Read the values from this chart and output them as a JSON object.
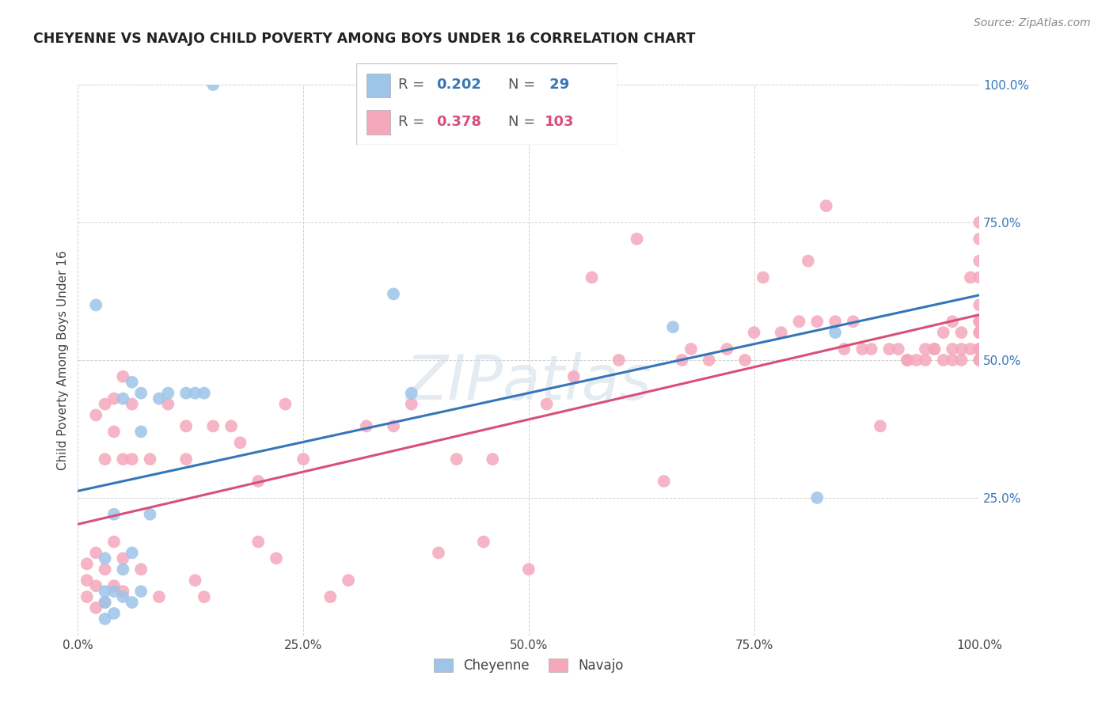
{
  "title": "CHEYENNE VS NAVAJO CHILD POVERTY AMONG BOYS UNDER 16 CORRELATION CHART",
  "source": "Source: ZipAtlas.com",
  "ylabel": "Child Poverty Among Boys Under 16",
  "cheyenne_R": 0.202,
  "cheyenne_N": 29,
  "navajo_R": 0.378,
  "navajo_N": 103,
  "cheyenne_color": "#9ec4e8",
  "navajo_color": "#f5a8bc",
  "cheyenne_line_color": "#3676b8",
  "navajo_line_color": "#d94f7a",
  "background_color": "#ffffff",
  "xlim": [
    0,
    1
  ],
  "ylim": [
    0,
    1
  ],
  "xticks": [
    0.0,
    0.25,
    0.5,
    0.75,
    1.0
  ],
  "yticks": [
    0.25,
    0.5,
    0.75,
    1.0
  ],
  "xticklabels": [
    "0.0%",
    "25.0%",
    "50.0%",
    "75.0%",
    "100.0%"
  ],
  "yticklabels": [
    "25.0%",
    "50.0%",
    "75.0%",
    "100.0%"
  ],
  "cheyenne_x": [
    0.02,
    0.03,
    0.03,
    0.03,
    0.03,
    0.04,
    0.04,
    0.04,
    0.05,
    0.05,
    0.05,
    0.06,
    0.06,
    0.06,
    0.07,
    0.07,
    0.07,
    0.08,
    0.09,
    0.1,
    0.12,
    0.13,
    0.14,
    0.15,
    0.35,
    0.37,
    0.66,
    0.82,
    0.84
  ],
  "cheyenne_y": [
    0.6,
    0.03,
    0.06,
    0.08,
    0.14,
    0.04,
    0.08,
    0.22,
    0.07,
    0.12,
    0.43,
    0.06,
    0.15,
    0.46,
    0.08,
    0.37,
    0.44,
    0.22,
    0.43,
    0.44,
    0.44,
    0.44,
    0.44,
    1.0,
    0.62,
    0.44,
    0.56,
    0.25,
    0.55
  ],
  "navajo_x": [
    0.01,
    0.01,
    0.01,
    0.02,
    0.02,
    0.02,
    0.02,
    0.03,
    0.03,
    0.03,
    0.03,
    0.04,
    0.04,
    0.04,
    0.04,
    0.05,
    0.05,
    0.05,
    0.05,
    0.06,
    0.06,
    0.07,
    0.08,
    0.09,
    0.1,
    0.12,
    0.12,
    0.13,
    0.14,
    0.15,
    0.17,
    0.18,
    0.2,
    0.2,
    0.22,
    0.23,
    0.25,
    0.28,
    0.3,
    0.32,
    0.35,
    0.37,
    0.4,
    0.42,
    0.45,
    0.46,
    0.5,
    0.52,
    0.55,
    0.57,
    0.6,
    0.62,
    0.65,
    0.67,
    0.68,
    0.7,
    0.72,
    0.74,
    0.75,
    0.76,
    0.78,
    0.8,
    0.81,
    0.82,
    0.83,
    0.84,
    0.85,
    0.86,
    0.87,
    0.88,
    0.89,
    0.9,
    0.91,
    0.92,
    0.92,
    0.93,
    0.94,
    0.94,
    0.95,
    0.95,
    0.96,
    0.96,
    0.97,
    0.97,
    0.97,
    0.98,
    0.98,
    0.98,
    0.99,
    0.99,
    1.0,
    1.0,
    1.0,
    1.0,
    1.0,
    1.0,
    1.0,
    1.0,
    1.0,
    1.0,
    1.0,
    1.0,
    1.0
  ],
  "navajo_y": [
    0.07,
    0.1,
    0.13,
    0.05,
    0.09,
    0.15,
    0.4,
    0.06,
    0.12,
    0.32,
    0.42,
    0.09,
    0.17,
    0.37,
    0.43,
    0.08,
    0.14,
    0.32,
    0.47,
    0.32,
    0.42,
    0.12,
    0.32,
    0.07,
    0.42,
    0.32,
    0.38,
    0.1,
    0.07,
    0.38,
    0.38,
    0.35,
    0.17,
    0.28,
    0.14,
    0.42,
    0.32,
    0.07,
    0.1,
    0.38,
    0.38,
    0.42,
    0.15,
    0.32,
    0.17,
    0.32,
    0.12,
    0.42,
    0.47,
    0.65,
    0.5,
    0.72,
    0.28,
    0.5,
    0.52,
    0.5,
    0.52,
    0.5,
    0.55,
    0.65,
    0.55,
    0.57,
    0.68,
    0.57,
    0.78,
    0.57,
    0.52,
    0.57,
    0.52,
    0.52,
    0.38,
    0.52,
    0.52,
    0.5,
    0.5,
    0.5,
    0.52,
    0.5,
    0.52,
    0.52,
    0.55,
    0.5,
    0.5,
    0.52,
    0.57,
    0.5,
    0.52,
    0.55,
    0.52,
    0.65,
    0.5,
    0.52,
    0.55,
    0.57,
    0.6,
    0.52,
    0.57,
    0.65,
    0.68,
    0.72,
    0.75,
    0.5,
    0.55
  ]
}
